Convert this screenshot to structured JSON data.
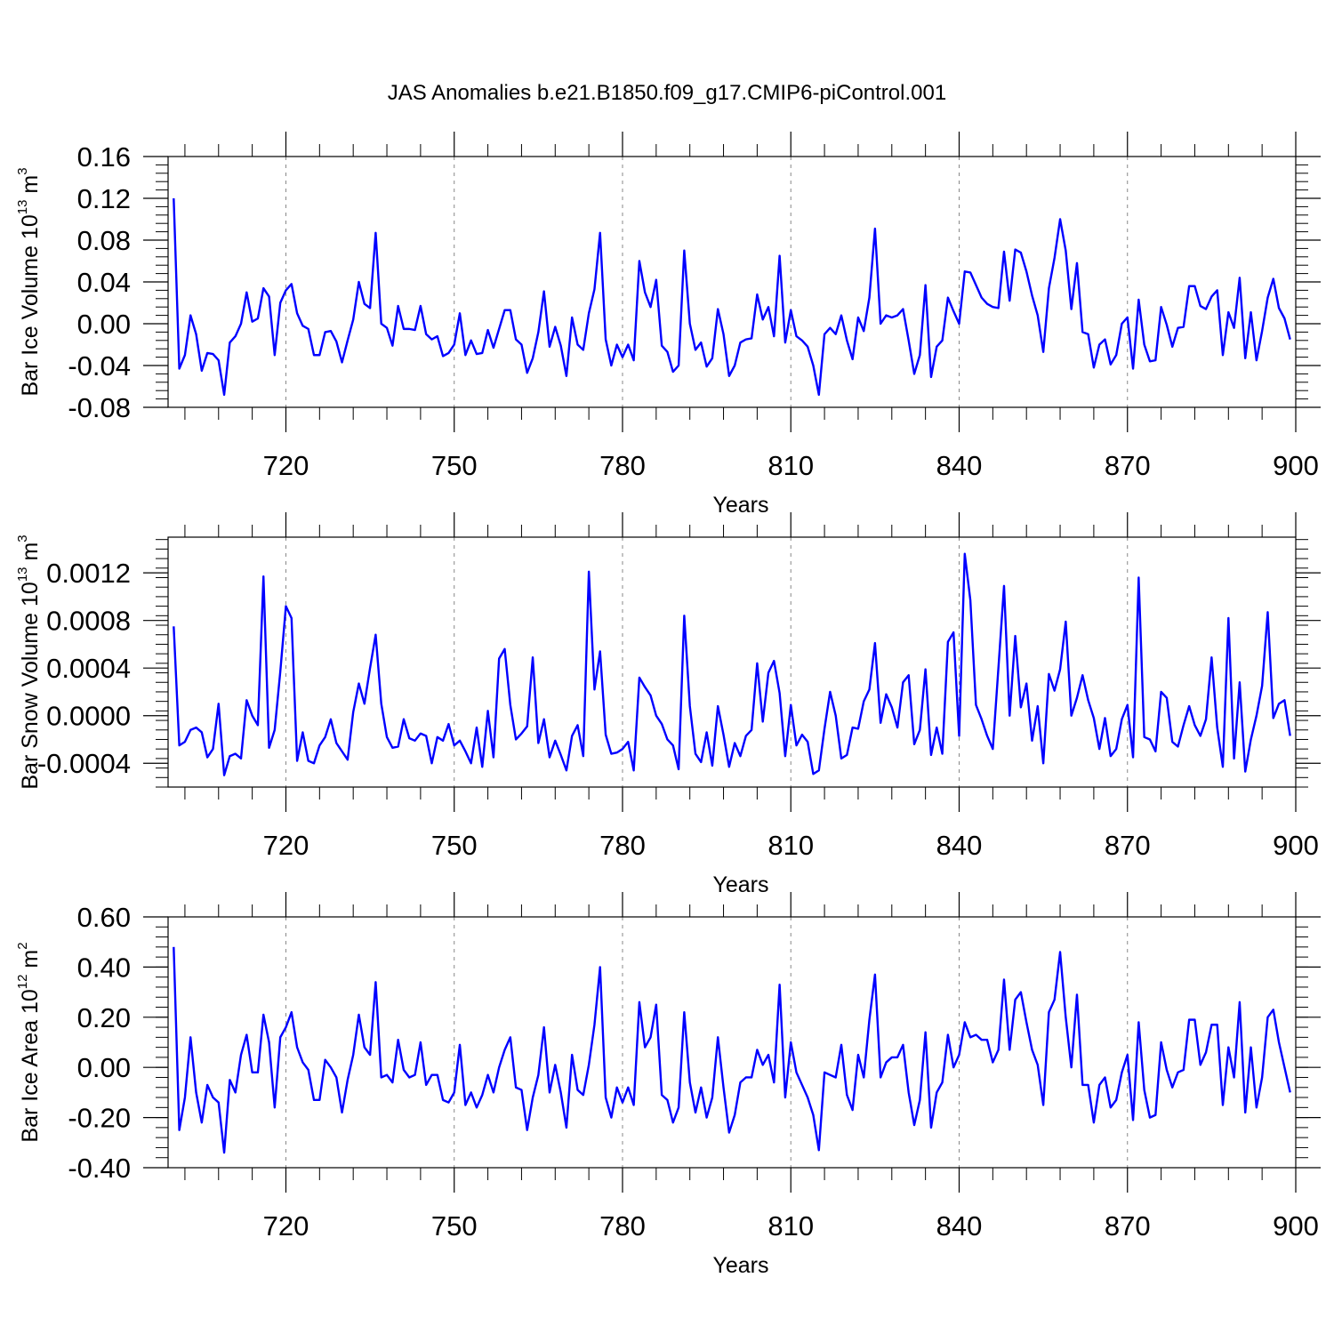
{
  "title": "JAS Anomalies b.e21.B1850.f09_g17.CMIP6-piControl.001",
  "line_color": "#0000ff",
  "chart_data": [
    {
      "type": "line",
      "panel": "top",
      "ylabel": "Bar Ice Volume 10",
      "ylabel_exp": "13",
      "ylabel_unit": " m",
      "ylabel_unit_exp": "3",
      "xlabel": "Years",
      "xlim": [
        699,
        900
      ],
      "ylim": [
        -0.08,
        0.16
      ],
      "yticks": [
        -0.08,
        -0.04,
        0.0,
        0.04,
        0.08,
        0.12,
        0.16
      ],
      "yticklabels": [
        "-0.08",
        "-0.04",
        "0.00",
        "0.04",
        "0.08",
        "0.12",
        "0.16"
      ],
      "xticks": [
        720,
        750,
        780,
        810,
        840,
        870,
        900
      ],
      "xticklabels": [
        "720",
        "750",
        "780",
        "810",
        "840",
        "870",
        "900"
      ],
      "grid": "vertical-dashed",
      "x_start": 700,
      "values": [
        0.12,
        -0.043,
        -0.03,
        0.008,
        -0.01,
        -0.045,
        -0.028,
        -0.029,
        -0.035,
        -0.068,
        -0.018,
        -0.012,
        0.0,
        0.03,
        0.002,
        0.005,
        0.034,
        0.026,
        -0.03,
        0.02,
        0.032,
        0.038,
        0.01,
        -0.002,
        -0.005,
        -0.03,
        -0.03,
        -0.008,
        -0.007,
        -0.017,
        -0.037,
        -0.016,
        0.004,
        0.04,
        0.019,
        0.015,
        0.087,
        0.0,
        -0.004,
        -0.021,
        0.017,
        -0.005,
        -0.005,
        -0.006,
        0.017,
        -0.01,
        -0.015,
        -0.012,
        -0.031,
        -0.028,
        -0.02,
        0.01,
        -0.03,
        -0.016,
        -0.029,
        -0.028,
        -0.006,
        -0.023,
        -0.005,
        0.013,
        0.013,
        -0.015,
        -0.02,
        -0.047,
        -0.033,
        -0.008,
        0.031,
        -0.022,
        -0.003,
        -0.021,
        -0.05,
        0.006,
        -0.02,
        -0.025,
        0.01,
        0.033,
        0.087,
        -0.015,
        -0.04,
        -0.02,
        -0.032,
        -0.02,
        -0.035,
        0.06,
        0.03,
        0.016,
        0.042,
        -0.021,
        -0.027,
        -0.046,
        -0.04,
        0.07,
        0.0,
        -0.025,
        -0.018,
        -0.041,
        -0.033,
        0.014,
        -0.01,
        -0.05,
        -0.04,
        -0.018,
        -0.015,
        -0.014,
        0.028,
        0.004,
        0.016,
        -0.012,
        0.065,
        -0.018,
        0.013,
        -0.012,
        -0.016,
        -0.022,
        -0.04,
        -0.068,
        -0.01,
        -0.004,
        -0.01,
        0.008,
        -0.016,
        -0.034,
        0.006,
        -0.007,
        0.025,
        0.091,
        0.0,
        0.008,
        0.006,
        0.008,
        0.014,
        -0.016,
        -0.048,
        -0.03,
        0.037,
        -0.051,
        -0.022,
        -0.016,
        0.025,
        0.012,
        0.0,
        0.05,
        0.049,
        0.037,
        0.025,
        0.019,
        0.016,
        0.015,
        0.069,
        0.022,
        0.071,
        0.068,
        0.05,
        0.027,
        0.008,
        -0.027,
        0.034,
        0.063,
        0.1,
        0.07,
        0.014,
        0.058,
        -0.008,
        -0.01,
        -0.042,
        -0.02,
        -0.015,
        -0.039,
        -0.03,
        0.0,
        0.006,
        -0.043,
        0.023,
        -0.02,
        -0.036,
        -0.035,
        0.016,
        -0.001,
        -0.022,
        -0.004,
        -0.003,
        0.036,
        0.036,
        0.017,
        0.014,
        0.026,
        0.032,
        -0.03,
        0.011,
        -0.004,
        0.044,
        -0.033,
        0.011,
        -0.035,
        -0.007,
        0.025,
        0.043,
        0.015,
        0.005,
        -0.015
      ]
    },
    {
      "type": "line",
      "panel": "middle",
      "ylabel": "Bar Snow Volume 10",
      "ylabel_exp": "13",
      "ylabel_unit": " m",
      "ylabel_unit_exp": "3",
      "xlabel": "Years",
      "xlim": [
        699,
        900
      ],
      "ylim": [
        -0.0006,
        0.0015
      ],
      "yticks": [
        -0.0004,
        0.0,
        0.0004,
        0.0008,
        0.0012
      ],
      "yticklabels": [
        "-0.0004",
        "0.0000",
        "0.0004",
        "0.0008",
        "0.0012"
      ],
      "xticks": [
        720,
        750,
        780,
        810,
        840,
        870,
        900
      ],
      "xticklabels": [
        "720",
        "750",
        "780",
        "810",
        "840",
        "870",
        "900"
      ],
      "grid": "vertical-dashed",
      "x_start": 700,
      "values": [
        0.00075,
        -0.00025,
        -0.00022,
        -0.00012,
        -0.0001,
        -0.00014,
        -0.00035,
        -0.00028,
        0.0001,
        -0.0005,
        -0.00034,
        -0.00032,
        -0.00036,
        0.00013,
        0.0,
        -8e-05,
        0.00117,
        -0.00027,
        -0.00012,
        0.00037,
        0.00092,
        0.00082,
        -0.00038,
        -0.00014,
        -0.00038,
        -0.0004,
        -0.00025,
        -0.00018,
        -3e-05,
        -0.00023,
        -0.0003,
        -0.00037,
        3e-05,
        0.00027,
        0.0001,
        0.0004,
        0.00068,
        0.0001,
        -0.00018,
        -0.00027,
        -0.00026,
        -3e-05,
        -0.00019,
        -0.00021,
        -0.00015,
        -0.00017,
        -0.0004,
        -0.00018,
        -0.00021,
        -7e-05,
        -0.00025,
        -0.00021,
        -0.0003,
        -0.0004,
        -0.0001,
        -0.00043,
        4e-05,
        -0.00035,
        0.00048,
        0.00056,
        9e-05,
        -0.0002,
        -0.00015,
        -9e-05,
        0.00049,
        -0.00023,
        -3e-05,
        -0.00035,
        -0.00021,
        -0.00033,
        -0.00046,
        -0.00017,
        -8e-05,
        -0.00034,
        0.00121,
        0.00022,
        0.00054,
        -0.00016,
        -0.00032,
        -0.00031,
        -0.00028,
        -0.00022,
        -0.00046,
        0.00032,
        0.00024,
        0.00017,
        0.0,
        -7e-05,
        -0.0002,
        -0.00025,
        -0.00045,
        0.00084,
        8e-05,
        -0.00032,
        -0.00039,
        -0.00014,
        -0.00042,
        8e-05,
        -0.00016,
        -0.00043,
        -0.00023,
        -0.00034,
        -0.00017,
        -0.00012,
        0.00044,
        -5e-05,
        0.00036,
        0.00046,
        0.00019,
        -0.00034,
        9e-05,
        -0.00025,
        -0.00016,
        -0.00022,
        -0.00049,
        -0.00046,
        -0.00011,
        0.0002,
        0.0,
        -0.00036,
        -0.00033,
        -0.0001,
        -0.00011,
        0.00012,
        0.00022,
        0.00061,
        -6e-05,
        0.00018,
        7e-05,
        -0.0001,
        0.00028,
        0.00034,
        -0.00024,
        -0.00012,
        0.00039,
        -0.00033,
        -0.0001,
        -0.00032,
        0.00062,
        0.0007,
        -0.00017,
        0.00136,
        0.00097,
        9e-05,
        -3e-05,
        -0.00017,
        -0.00028,
        0.0004,
        0.00109,
        0.0,
        0.00067,
        7e-05,
        0.00027,
        -0.00021,
        8e-05,
        -0.0004,
        0.00035,
        0.00021,
        0.00039,
        0.00079,
        0.0,
        0.00015,
        0.00034,
        0.00013,
        -2e-05,
        -0.00028,
        -2e-05,
        -0.00034,
        -0.00028,
        -3e-05,
        9e-05,
        -0.00035,
        0.00116,
        -0.00018,
        -0.0002,
        -0.0003,
        0.0002,
        0.00015,
        -0.00022,
        -0.00026,
        -8e-05,
        8e-05,
        -8e-05,
        -0.00017,
        -3e-05,
        0.00049,
        -0.0001,
        -0.00043,
        0.00082,
        -0.00036,
        0.00028,
        -0.00047,
        -0.0002,
        0.0,
        0.00025,
        0.00087,
        -2e-05,
        0.0001,
        0.00013,
        -0.00017
      ]
    },
    {
      "type": "line",
      "panel": "bottom",
      "ylabel": "Bar Ice Area 10",
      "ylabel_exp": "12",
      "ylabel_unit": " m",
      "ylabel_unit_exp": "2",
      "xlabel": "Years",
      "xlim": [
        699,
        900
      ],
      "ylim": [
        -0.4,
        0.6
      ],
      "yticks": [
        -0.4,
        -0.2,
        0.0,
        0.2,
        0.4,
        0.6
      ],
      "yticklabels": [
        "-0.40",
        "-0.20",
        "0.00",
        "0.20",
        "0.40",
        "0.60"
      ],
      "xticks": [
        720,
        750,
        780,
        810,
        840,
        870,
        900
      ],
      "xticklabels": [
        "720",
        "750",
        "780",
        "810",
        "840",
        "870",
        "900"
      ],
      "grid": "vertical-dashed",
      "x_start": 700,
      "values": [
        0.48,
        -0.25,
        -0.12,
        0.12,
        -0.1,
        -0.22,
        -0.07,
        -0.12,
        -0.14,
        -0.34,
        -0.05,
        -0.1,
        0.05,
        0.13,
        -0.02,
        -0.02,
        0.21,
        0.1,
        -0.16,
        0.12,
        0.16,
        0.22,
        0.08,
        0.02,
        -0.01,
        -0.13,
        -0.13,
        0.03,
        0.0,
        -0.04,
        -0.18,
        -0.05,
        0.05,
        0.21,
        0.08,
        0.05,
        0.34,
        -0.04,
        -0.03,
        -0.06,
        0.11,
        -0.01,
        -0.04,
        -0.03,
        0.1,
        -0.07,
        -0.03,
        -0.03,
        -0.13,
        -0.14,
        -0.1,
        0.09,
        -0.15,
        -0.1,
        -0.16,
        -0.11,
        -0.03,
        -0.1,
        0.0,
        0.07,
        0.12,
        -0.08,
        -0.09,
        -0.25,
        -0.12,
        -0.03,
        0.16,
        -0.1,
        0.01,
        -0.1,
        -0.24,
        0.05,
        -0.09,
        -0.11,
        0.01,
        0.17,
        0.4,
        -0.12,
        -0.2,
        -0.08,
        -0.14,
        -0.08,
        -0.15,
        0.26,
        0.08,
        0.12,
        0.25,
        -0.11,
        -0.13,
        -0.22,
        -0.16,
        0.22,
        -0.06,
        -0.18,
        -0.08,
        -0.2,
        -0.12,
        0.12,
        -0.08,
        -0.26,
        -0.19,
        -0.06,
        -0.04,
        -0.04,
        0.07,
        0.01,
        0.05,
        -0.06,
        0.33,
        -0.12,
        0.1,
        -0.02,
        -0.07,
        -0.12,
        -0.19,
        -0.33,
        -0.02,
        -0.03,
        -0.04,
        0.09,
        -0.11,
        -0.17,
        0.05,
        -0.04,
        0.19,
        0.37,
        -0.04,
        0.02,
        0.04,
        0.04,
        0.09,
        -0.1,
        -0.23,
        -0.13,
        0.14,
        -0.24,
        -0.1,
        -0.06,
        0.13,
        0.0,
        0.05,
        0.18,
        0.12,
        0.13,
        0.11,
        0.11,
        0.02,
        0.07,
        0.35,
        0.07,
        0.27,
        0.3,
        0.18,
        0.07,
        0.01,
        -0.15,
        0.22,
        0.27,
        0.46,
        0.2,
        0.0,
        0.29,
        -0.07,
        -0.07,
        -0.22,
        -0.07,
        -0.04,
        -0.16,
        -0.13,
        -0.02,
        0.05,
        -0.21,
        0.18,
        -0.09,
        -0.2,
        -0.19,
        0.1,
        -0.01,
        -0.08,
        -0.02,
        -0.01,
        0.19,
        0.19,
        0.01,
        0.06,
        0.17,
        0.17,
        -0.15,
        0.08,
        -0.04,
        0.26,
        -0.18,
        0.08,
        -0.16,
        -0.04,
        0.2,
        0.23,
        0.1,
        0.0,
        -0.1
      ]
    }
  ]
}
